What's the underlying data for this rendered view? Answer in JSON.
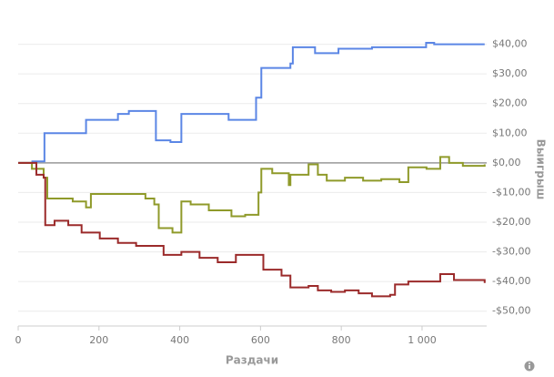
{
  "chart_data": {
    "type": "step-line",
    "y_axis_title": "Выигрыш",
    "x_axis_title": "Раздачи",
    "xlim": [
      0,
      1160
    ],
    "ylim": [
      -55,
      50
    ],
    "xticks": [
      0,
      200,
      400,
      600,
      800,
      {
        "value": 1000,
        "label": "1 000"
      }
    ],
    "yticks": [
      {
        "value": -50,
        "label": "-$50,00"
      },
      {
        "value": -40,
        "label": "-$40,00"
      },
      {
        "value": -30,
        "label": "-$30,00"
      },
      {
        "value": -20,
        "label": "-$20,00"
      },
      {
        "value": -10,
        "label": "-$10,00"
      },
      {
        "value": 0,
        "label": "$0,00"
      },
      {
        "value": 10,
        "label": "$10,00"
      },
      {
        "value": 20,
        "label": "$20,00"
      },
      {
        "value": 30,
        "label": "$30,00"
      },
      {
        "value": 40,
        "label": "$40,00"
      }
    ],
    "grid": true,
    "zero_line": true,
    "series": [
      {
        "color": "#5b86e5",
        "x": [
          0,
          35,
          65,
          168,
          247,
          274,
          341,
          377,
          404,
          521,
          589,
          602,
          674,
          680,
          735,
          793,
          876,
          1010,
          1030,
          1155
        ],
        "values": [
          0,
          0.5,
          10,
          14.5,
          16.5,
          17.5,
          7.6,
          7,
          16.5,
          14.5,
          22,
          32,
          33.5,
          39,
          37,
          38.5,
          39,
          40.5,
          40,
          40
        ]
      },
      {
        "color": "#8f9a2a",
        "x": [
          0,
          34,
          63,
          72,
          135,
          168,
          180,
          247,
          315,
          337,
          348,
          382,
          404,
          427,
          472,
          528,
          562,
          595,
          602,
          629,
          670,
          674,
          719,
          742,
          764,
          809,
          854,
          899,
          944,
          966,
          1011,
          1045,
          1067,
          1101,
          1155
        ],
        "values": [
          0,
          -2,
          -5,
          -12,
          -13,
          -15,
          -10.5,
          -10.5,
          -12,
          -14,
          -22,
          -23.5,
          -13,
          -14,
          -16,
          -18,
          -17.5,
          -10,
          -2,
          -3.5,
          -7.5,
          -4,
          -0.5,
          -4,
          -6,
          -5,
          -6,
          -5.5,
          -6.5,
          -1.5,
          -2,
          2,
          0,
          -1,
          -0.5
        ]
      },
      {
        "color": "#9b2a2a",
        "x": [
          0,
          22,
          45,
          63,
          67,
          90,
          124,
          157,
          202,
          247,
          292,
          360,
          404,
          449,
          494,
          539,
          584,
          607,
          652,
          674,
          719,
          742,
          775,
          809,
          843,
          876,
          921,
          933,
          966,
          1045,
          1079,
          1155
        ],
        "values": [
          0,
          0,
          -4,
          -5,
          -21,
          -19.5,
          -21,
          -23.5,
          -25.5,
          -27,
          -28,
          -31,
          -30,
          -32,
          -33.5,
          -31,
          -31,
          -36,
          -38,
          -42,
          -41.5,
          -43,
          -43.5,
          -43,
          -44,
          -45,
          -44.5,
          -41,
          -40,
          -37.5,
          -39.5,
          -40.5
        ]
      }
    ]
  }
}
